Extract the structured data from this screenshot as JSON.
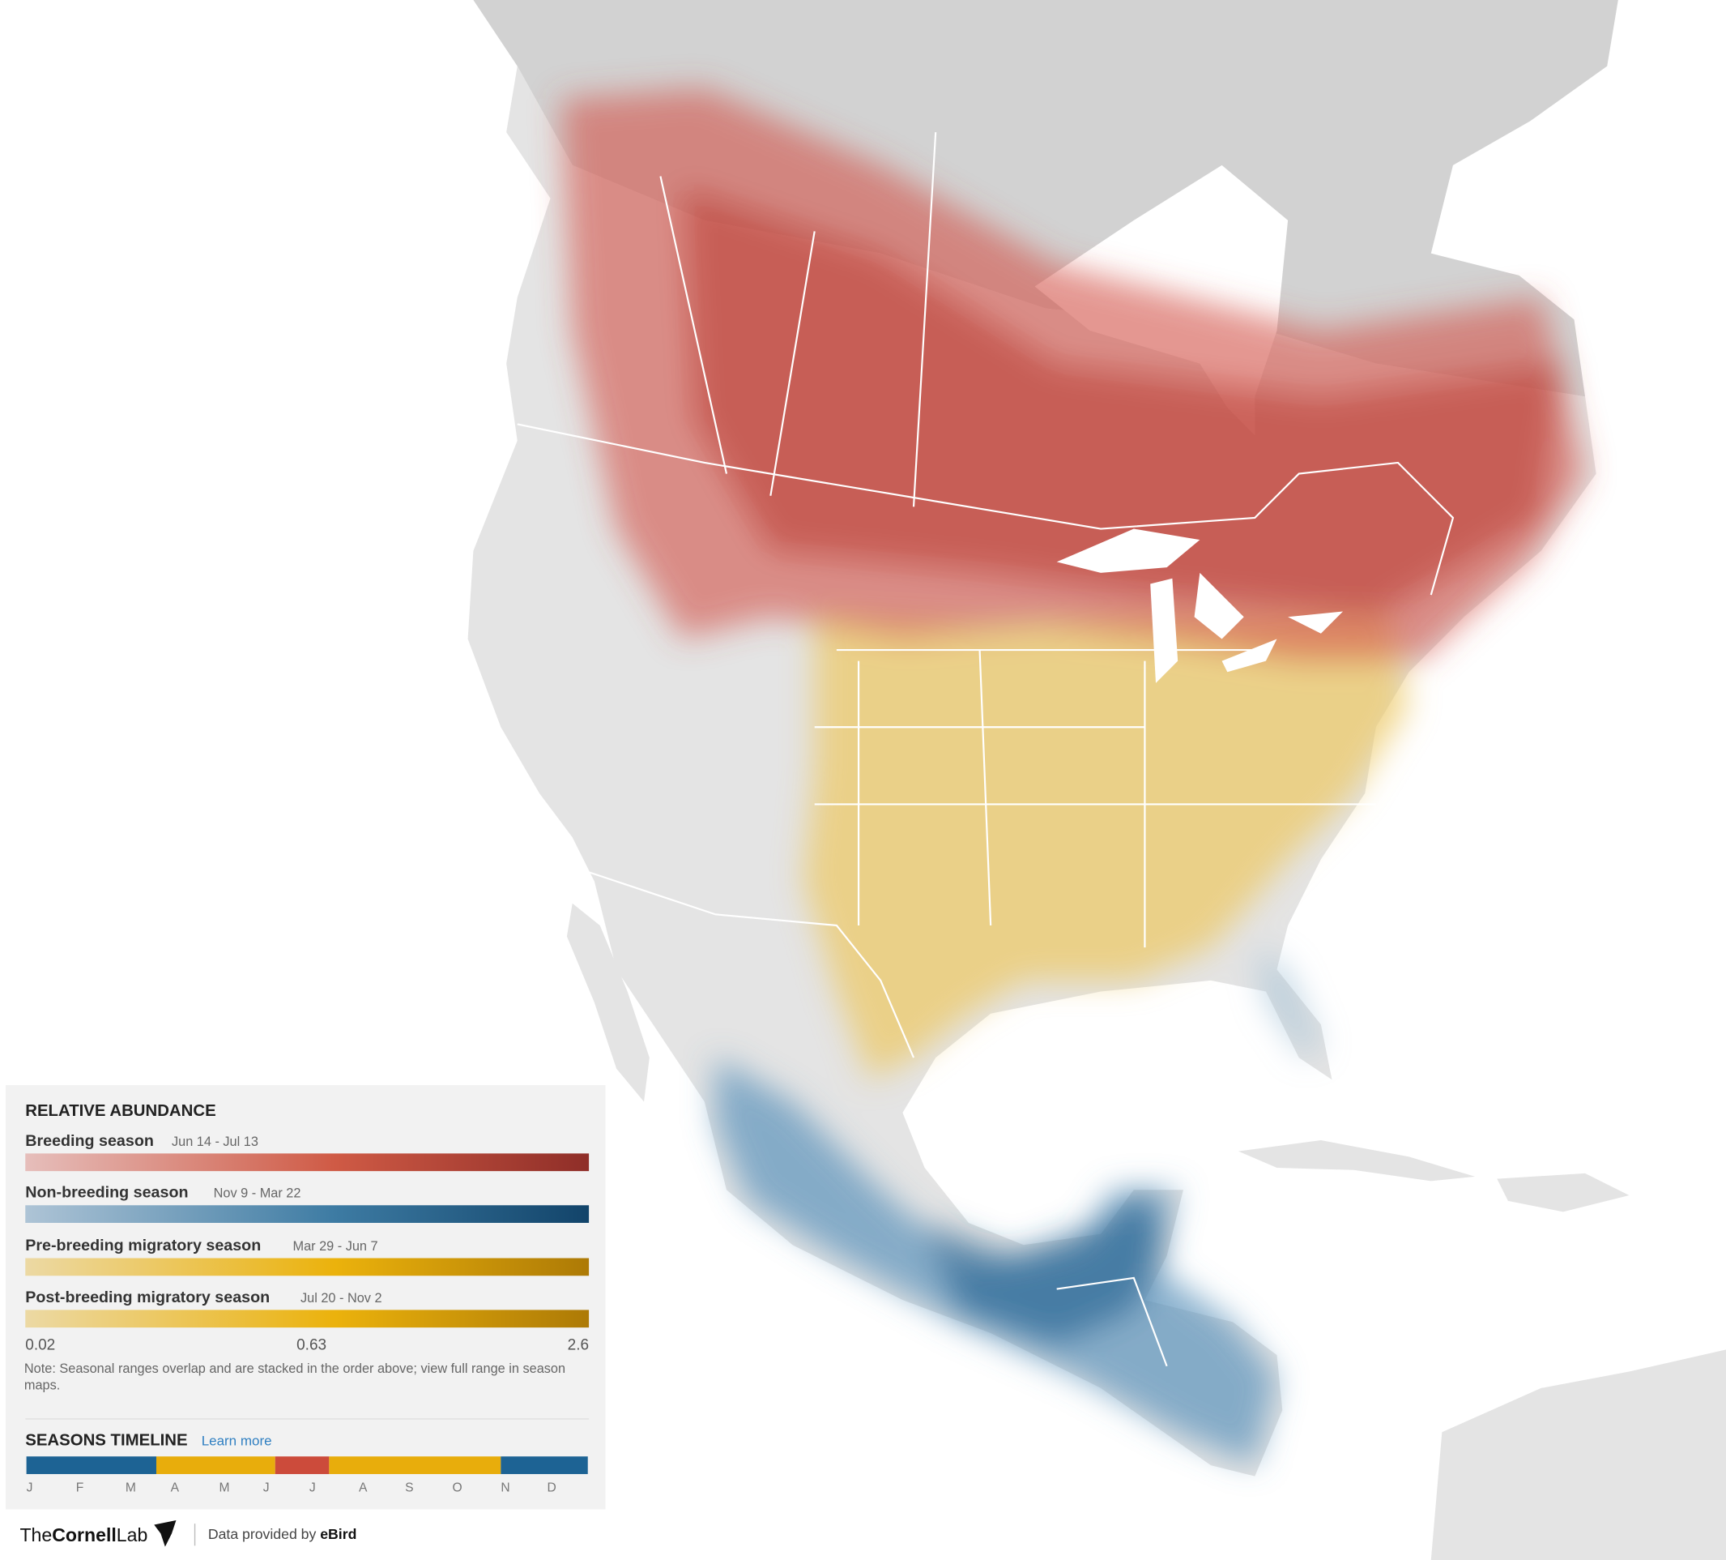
{
  "legend": {
    "title": "RELATIVE ABUNDANCE",
    "seasons": [
      {
        "name": "Breeding season",
        "dates": "Jun 14 - Jul 13"
      },
      {
        "name": "Non-breeding season",
        "dates": "Nov 9 - Mar 22"
      },
      {
        "name": "Pre-breeding migratory season",
        "dates": "Mar 29 - Jun 7"
      },
      {
        "name": "Post-breeding migratory season",
        "dates": "Jul 20 - Nov 2"
      }
    ],
    "scale_labels": [
      "0.02",
      "0.63",
      "2.6"
    ],
    "note": "Note: Seasonal ranges overlap and are stacked in the order above; view full range in season maps."
  },
  "timeline": {
    "title": "SEASONS TIMELINE",
    "link": "Learn more",
    "months": [
      "J",
      "F",
      "M",
      "A",
      "M",
      "J",
      "J",
      "A",
      "S",
      "O",
      "N",
      "D"
    ]
  },
  "footer": {
    "logo": [
      "The",
      "Cornell",
      "Lab"
    ],
    "credit": "Data provided by",
    "source": "eBird"
  }
}
